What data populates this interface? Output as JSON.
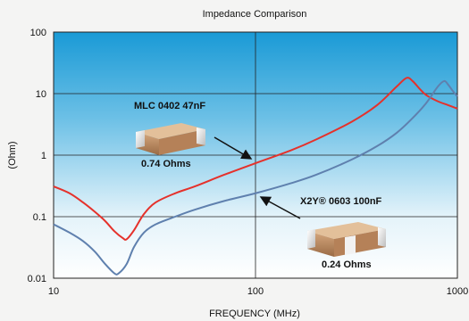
{
  "chart_data": {
    "type": "line",
    "title": "Impedance Comparison",
    "xlabel": "FREQUENCY (MHz)",
    "ylabel": "(Ohm)",
    "xscale": "log",
    "yscale": "log",
    "xlim": [
      10,
      1000
    ],
    "ylim": [
      0.01,
      100
    ],
    "x_ticks": [
      10,
      100,
      1000
    ],
    "x_tick_labels": [
      "10",
      "100",
      "1000"
    ],
    "y_ticks": [
      0.01,
      0.1,
      1,
      10,
      100
    ],
    "y_tick_labels": [
      "0.01",
      "0.1",
      "1",
      "10",
      "100"
    ],
    "grid": true,
    "series": [
      {
        "name": "MLC 0402 47nF",
        "color": "#e5312b",
        "x": [
          10,
          12,
          14,
          16,
          18,
          20,
          22,
          23,
          25,
          28,
          32,
          40,
          50,
          70,
          100,
          150,
          200,
          300,
          400,
          500,
          560,
          600,
          650,
          700,
          800,
          900,
          1000
        ],
        "y": [
          0.31,
          0.24,
          0.17,
          0.12,
          0.085,
          0.058,
          0.045,
          0.043,
          0.06,
          0.11,
          0.17,
          0.24,
          0.31,
          0.48,
          0.74,
          1.2,
          1.8,
          3.5,
          6.5,
          13,
          18,
          16,
          12,
          9.5,
          7.5,
          6.5,
          5.7
        ]
      },
      {
        "name": "X2Y® 0603 100nF",
        "color": "#5f80ae",
        "x": [
          10,
          12,
          14,
          16,
          18,
          20,
          21,
          23,
          25,
          28,
          32,
          40,
          50,
          70,
          100,
          150,
          200,
          300,
          400,
          500,
          600,
          700,
          800,
          860,
          900,
          950,
          1000
        ],
        "y": [
          0.075,
          0.055,
          0.04,
          0.027,
          0.017,
          0.012,
          0.012,
          0.017,
          0.032,
          0.055,
          0.075,
          0.1,
          0.13,
          0.18,
          0.24,
          0.35,
          0.48,
          0.85,
          1.4,
          2.3,
          4.0,
          7.0,
          13,
          16,
          14,
          11,
          9
        ]
      }
    ],
    "annotations": [
      {
        "label": "MLC 0402 47nF",
        "value": "0.74 Ohms",
        "point_x": 100,
        "point_y": 0.74
      },
      {
        "label": "X2Y® 0603 100nF",
        "value": "0.24 Ohms",
        "point_x": 100,
        "point_y": 0.24
      }
    ]
  }
}
